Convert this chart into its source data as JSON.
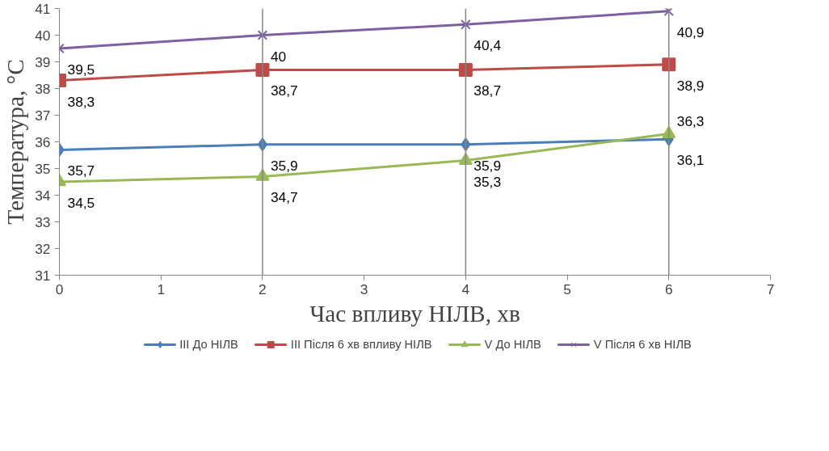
{
  "chart_data": {
    "type": "line",
    "xlabel": "Час впливу НІЛВ, хв",
    "ylabel": "Температура, °C",
    "x": [
      0,
      2,
      4,
      6
    ],
    "series": [
      {
        "name": "III До НІЛВ",
        "color": "#4a7ebb",
        "marker": "diamond",
        "values": [
          35.7,
          35.9,
          35.9,
          36.1
        ],
        "value_labels": [
          "35,7",
          "35,9",
          "35,9",
          "36,1"
        ]
      },
      {
        "name": "III Після 6 хв впливу НІЛВ",
        "color": "#be4b48",
        "marker": "square",
        "values": [
          38.3,
          38.7,
          38.7,
          38.9
        ],
        "value_labels": [
          "38,3",
          "38,7",
          "38,7",
          "38,9"
        ]
      },
      {
        "name": "V До НІЛВ",
        "color": "#98b954",
        "marker": "triangle",
        "values": [
          34.5,
          34.7,
          35.3,
          36.3
        ],
        "value_labels": [
          "34,5",
          "34,7",
          "35,3",
          "36,3"
        ]
      },
      {
        "name": "V Після 6 хв НІЛВ",
        "color": "#7d60a0",
        "marker": "cross",
        "values": [
          39.5,
          40,
          40.4,
          40.9
        ],
        "value_labels": [
          "39,5",
          "40",
          "40,4",
          "40,9"
        ]
      }
    ],
    "xlim": [
      0,
      7
    ],
    "xticks": [
      0,
      1,
      2,
      3,
      4,
      5,
      6,
      7
    ],
    "ylim": [
      31,
      41
    ],
    "yticks": [
      31,
      32,
      33,
      34,
      35,
      36,
      37,
      38,
      39,
      40,
      41
    ],
    "ref_lines": [
      {
        "axis": "x",
        "value": 2,
        "color": "#868686"
      },
      {
        "axis": "x",
        "value": 4,
        "color": "#868686"
      },
      {
        "axis": "x",
        "value": 6,
        "color": "#868686"
      }
    ],
    "legend": "bottom",
    "grid": false,
    "line_style": "solid"
  }
}
